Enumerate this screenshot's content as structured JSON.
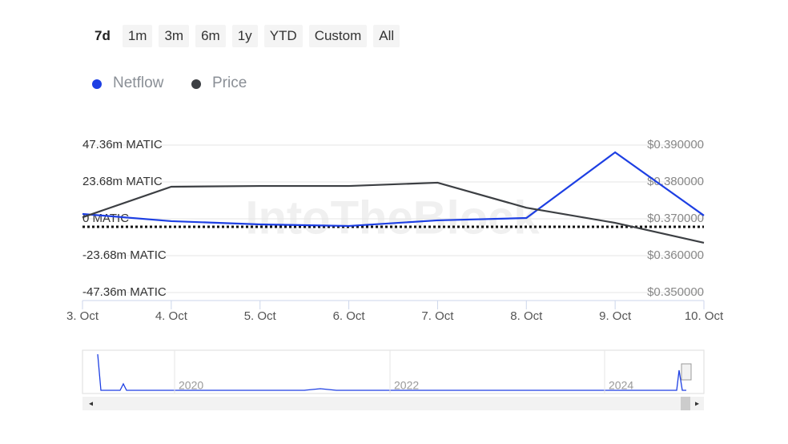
{
  "range_buttons": [
    "7d",
    "1m",
    "3m",
    "6m",
    "1y",
    "YTD",
    "Custom",
    "All"
  ],
  "chart_data": {
    "type": "line",
    "categories": [
      "3. Oct",
      "4. Oct",
      "5. Oct",
      "6. Oct",
      "7. Oct",
      "8. Oct",
      "9. Oct",
      "10. Oct"
    ],
    "series": [
      {
        "name": "Netflow",
        "color": "#1d3fe3",
        "values": [
          3.1,
          -1.5,
          -3.6,
          -4.6,
          -1.0,
          0.5,
          42.7,
          2.1
        ]
      },
      {
        "name": "Price",
        "color": "#3c3f43",
        "axis": "y2",
        "values": [
          0.3704,
          0.3787,
          0.3789,
          0.3789,
          0.3798,
          0.373,
          0.3689,
          0.3635
        ]
      }
    ],
    "ylim": [
      -47.36,
      47.36
    ],
    "yticks": [
      {
        "value": -47.36,
        "label": "-47.36m MATIC"
      },
      {
        "value": -23.68,
        "label": "-23.68m MATIC"
      },
      {
        "value": 0,
        "label": "0 MATIC"
      },
      {
        "value": 23.68,
        "label": "23.68m MATIC"
      },
      {
        "value": 47.36,
        "label": "47.36m MATIC"
      }
    ],
    "y2lim": [
      0.35,
      0.39
    ],
    "y2ticks": [
      {
        "value": 0.35,
        "label": "$0.350000"
      },
      {
        "value": 0.36,
        "label": "$0.360000"
      },
      {
        "value": 0.37,
        "label": "$0.370000"
      },
      {
        "value": 0.38,
        "label": "$0.380000"
      },
      {
        "value": 0.39,
        "label": "$0.390000"
      }
    ],
    "grid": true,
    "legend": "top-left",
    "watermark": "IntoTheBlock",
    "navigator_labels": [
      "2020",
      "2022",
      "2024"
    ]
  }
}
